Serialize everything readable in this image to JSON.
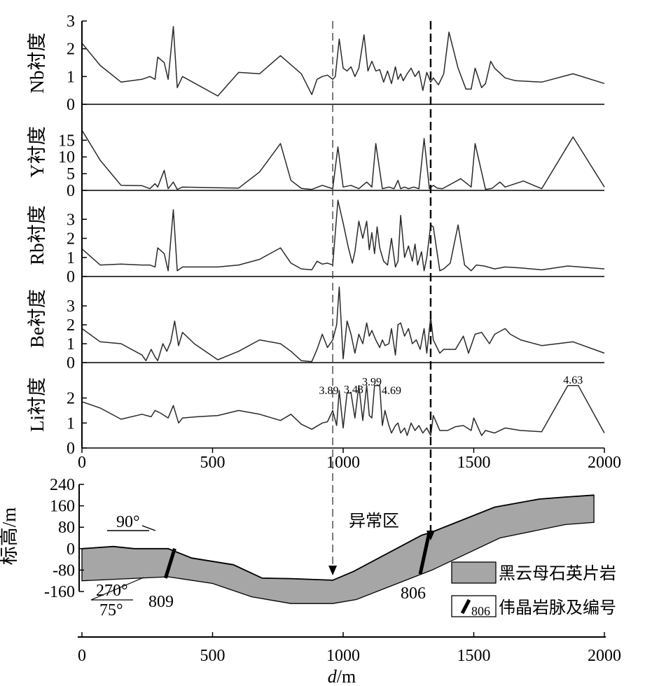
{
  "chart_data": [
    {
      "type": "line",
      "ylabel": "Nb衬度",
      "ylim": [
        0,
        3
      ],
      "yticks": [
        0,
        1,
        2,
        3
      ],
      "x": [
        0,
        70,
        150,
        230,
        260,
        280,
        290,
        315,
        330,
        350,
        365,
        385,
        520,
        600,
        680,
        760,
        840,
        880,
        900,
        920,
        940,
        960,
        970,
        985,
        1000,
        1015,
        1030,
        1045,
        1060,
        1080,
        1095,
        1110,
        1125,
        1140,
        1155,
        1170,
        1185,
        1200,
        1210,
        1220,
        1230,
        1245,
        1260,
        1275,
        1290,
        1305,
        1320,
        1335,
        1345,
        1365,
        1385,
        1405,
        1440,
        1470,
        1490,
        1505,
        1530,
        1545,
        1565,
        1580,
        1620,
        1660,
        1760,
        1880,
        2000
      ],
      "values": [
        2.2,
        1.4,
        0.8,
        0.9,
        1.0,
        0.9,
        1.7,
        1.5,
        0.9,
        2.8,
        0.6,
        1.0,
        0.3,
        1.15,
        1.1,
        1.75,
        1.1,
        0.35,
        0.9,
        1.0,
        1.05,
        0.9,
        1.0,
        2.35,
        1.3,
        1.2,
        1.35,
        1.0,
        1.3,
        2.5,
        1.2,
        1.55,
        1.2,
        1.25,
        0.8,
        1.2,
        0.75,
        1.35,
        0.9,
        1.1,
        0.85,
        1.1,
        1.3,
        1.0,
        1.2,
        0.5,
        1.15,
        0.8,
        0.95,
        0.7,
        1.1,
        2.6,
        1.3,
        0.55,
        0.55,
        1.3,
        0.6,
        0.75,
        1.55,
        1.3,
        0.95,
        0.85,
        0.8,
        1.1,
        0.75
      ]
    },
    {
      "type": "line",
      "ylabel": "Y衬度",
      "ylim": [
        0,
        18
      ],
      "yticks": [
        0,
        5,
        10,
        15
      ],
      "x": [
        0,
        70,
        150,
        230,
        260,
        280,
        290,
        315,
        330,
        350,
        365,
        385,
        520,
        600,
        680,
        760,
        800,
        840,
        880,
        920,
        960,
        980,
        1000,
        1030,
        1060,
        1090,
        1110,
        1125,
        1150,
        1175,
        1195,
        1210,
        1220,
        1235,
        1250,
        1270,
        1290,
        1310,
        1330,
        1345,
        1360,
        1380,
        1450,
        1490,
        1505,
        1545,
        1570,
        1600,
        1620,
        1690,
        1760,
        1880,
        2000
      ],
      "values": [
        18,
        9,
        1.5,
        1.4,
        0.5,
        2.0,
        1.0,
        6.0,
        0.5,
        2.5,
        0.3,
        1.0,
        0.8,
        0.7,
        5.5,
        14,
        3.0,
        0.6,
        0.3,
        1.5,
        0.5,
        13,
        1.0,
        1.5,
        0.5,
        2.5,
        1.0,
        14,
        0.5,
        1.0,
        0.5,
        3.0,
        0.5,
        1.0,
        0.5,
        1.0,
        0.5,
        15.5,
        0.5,
        1.5,
        0.7,
        0.5,
        3.5,
        1.0,
        14,
        0.3,
        0.6,
        2.5,
        1.0,
        2.8,
        0.5,
        16,
        1.0
      ]
    },
    {
      "type": "line",
      "ylabel": "Rb衬度",
      "ylim": [
        0,
        4
      ],
      "yticks": [
        0,
        1,
        2,
        3
      ],
      "x": [
        0,
        70,
        150,
        230,
        260,
        280,
        290,
        315,
        330,
        350,
        365,
        385,
        520,
        600,
        680,
        760,
        800,
        840,
        880,
        900,
        920,
        940,
        960,
        980,
        1000,
        1020,
        1035,
        1045,
        1060,
        1075,
        1090,
        1100,
        1110,
        1120,
        1130,
        1140,
        1155,
        1170,
        1185,
        1200,
        1210,
        1220,
        1235,
        1250,
        1265,
        1275,
        1285,
        1300,
        1310,
        1320,
        1335,
        1345,
        1370,
        1385,
        1410,
        1440,
        1465,
        1490,
        1510,
        1540,
        1580,
        1620,
        1680,
        1760,
        1860,
        2000
      ],
      "values": [
        1.45,
        0.6,
        0.65,
        0.6,
        0.6,
        0.5,
        1.5,
        1.2,
        0.3,
        3.5,
        0.3,
        0.5,
        0.5,
        0.6,
        0.9,
        1.5,
        0.7,
        0.4,
        0.35,
        0.8,
        0.65,
        0.7,
        0.6,
        4.0,
        2.8,
        1.5,
        0.7,
        1.3,
        2.9,
        2.0,
        2.9,
        1.4,
        2.3,
        1.2,
        2.6,
        1.5,
        0.8,
        0.6,
        2.0,
        0.5,
        0.8,
        3.2,
        1.0,
        1.6,
        0.8,
        1.7,
        0.6,
        1.3,
        0.3,
        1.0,
        2.7,
        2.6,
        0.3,
        0.4,
        0.7,
        2.7,
        0.6,
        0.3,
        0.6,
        0.55,
        0.4,
        0.5,
        0.45,
        0.35,
        0.55,
        0.4
      ]
    },
    {
      "type": "line",
      "ylabel": "Be衬度",
      "ylim": [
        0,
        4
      ],
      "yticks": [
        0,
        1,
        2,
        3
      ],
      "x": [
        0,
        70,
        150,
        230,
        245,
        265,
        280,
        290,
        310,
        325,
        340,
        355,
        370,
        385,
        430,
        520,
        600,
        680,
        760,
        800,
        840,
        880,
        900,
        920,
        940,
        960,
        975,
        985,
        1000,
        1015,
        1030,
        1045,
        1060,
        1075,
        1090,
        1100,
        1110,
        1125,
        1140,
        1150,
        1160,
        1175,
        1185,
        1200,
        1210,
        1220,
        1235,
        1250,
        1265,
        1280,
        1295,
        1310,
        1320,
        1335,
        1345,
        1370,
        1385,
        1430,
        1460,
        1480,
        1505,
        1530,
        1560,
        1580,
        1620,
        1640,
        1680,
        1760,
        1880,
        2000
      ],
      "values": [
        1.8,
        1.1,
        1.0,
        0.4,
        0.1,
        0.7,
        0.3,
        0.1,
        1.0,
        0.6,
        1.1,
        2.2,
        0.9,
        1.6,
        1.0,
        0.15,
        0.6,
        1.2,
        1.0,
        0.6,
        0.1,
        0.05,
        0.7,
        1.5,
        0.8,
        1.2,
        2.0,
        4.0,
        0.2,
        2.2,
        1.5,
        0.5,
        1.5,
        1.0,
        2.1,
        1.4,
        1.7,
        1.2,
        0.8,
        1.2,
        0.9,
        1.0,
        1.8,
        0.4,
        2.0,
        2.1,
        1.4,
        1.8,
        1.0,
        1.2,
        0.7,
        1.8,
        0.5,
        2.4,
        1.2,
        0.5,
        0.7,
        0.7,
        1.4,
        0.5,
        1.5,
        1.6,
        1.0,
        1.5,
        1.8,
        1.5,
        1.2,
        0.9,
        1.1,
        0.5
      ]
    },
    {
      "type": "line",
      "ylabel": "Li衬度",
      "ylim": [
        0,
        2.8
      ],
      "yticks": [
        0,
        1,
        2
      ],
      "x": [
        0,
        70,
        150,
        230,
        265,
        280,
        300,
        330,
        350,
        370,
        385,
        440,
        520,
        600,
        680,
        760,
        800,
        840,
        880,
        920,
        940,
        960,
        975,
        985,
        1000,
        1015,
        1030,
        1045,
        1060,
        1075,
        1090,
        1100,
        1110,
        1120,
        1130,
        1140,
        1150,
        1160,
        1175,
        1185,
        1200,
        1210,
        1220,
        1235,
        1245,
        1260,
        1275,
        1290,
        1305,
        1320,
        1335,
        1345,
        1370,
        1400,
        1430,
        1460,
        1490,
        1500,
        1530,
        1545,
        1580,
        1620,
        1680,
        1760,
        1860,
        1900,
        2000
      ],
      "values": [
        1.85,
        1.6,
        1.15,
        1.35,
        1.25,
        1.5,
        1.4,
        1.2,
        1.7,
        1.0,
        1.2,
        1.25,
        1.3,
        1.5,
        1.35,
        1.1,
        1.35,
        0.95,
        0.75,
        1.0,
        1.05,
        1.5,
        0.9,
        2.3,
        0.8,
        2.2,
        2.2,
        1.2,
        2.5,
        1.1,
        2.5,
        1.3,
        1.2,
        2.5,
        2.5,
        2.5,
        0.9,
        1.5,
        0.9,
        0.6,
        0.9,
        1.0,
        0.6,
        0.8,
        0.5,
        1.0,
        0.7,
        0.9,
        0.6,
        0.8,
        0.5,
        1.3,
        0.7,
        0.7,
        0.85,
        0.9,
        0.7,
        1.2,
        0.5,
        0.7,
        0.6,
        0.8,
        0.7,
        0.65,
        2.5,
        2.5,
        0.6
      ],
      "annotations": [
        {
          "x": 945,
          "y": 2.15,
          "label": "3.89"
        },
        {
          "x": 1040,
          "y": 2.2,
          "label": "3.43"
        },
        {
          "x": 1110,
          "y": 2.5,
          "label": "3.99"
        },
        {
          "x": 1185,
          "y": 2.15,
          "label": "4.69"
        },
        {
          "x": 1880,
          "y": 2.58,
          "label": "4.63"
        }
      ]
    }
  ],
  "xaxis": {
    "label": "d/m",
    "xlim": [
      0,
      2000
    ],
    "ticks": [
      "0",
      "500",
      "1000",
      "1500",
      "2000"
    ]
  },
  "section": {
    "ylabel": "标高/m",
    "ylim": [
      -160,
      240
    ],
    "yticks": [
      "240",
      "160",
      "80",
      "0",
      "-80",
      "-160"
    ],
    "surface": [
      [
        0,
        0
      ],
      [
        120,
        8
      ],
      [
        200,
        0
      ],
      [
        330,
        0
      ],
      [
        420,
        -35
      ],
      [
        580,
        -60
      ],
      [
        690,
        -110
      ],
      [
        800,
        -112
      ],
      [
        960,
        -118
      ],
      [
        1040,
        -85
      ],
      [
        1300,
        50
      ],
      [
        1340,
        62
      ],
      [
        1580,
        155
      ],
      [
        1750,
        185
      ],
      [
        1840,
        192
      ],
      [
        1960,
        200
      ]
    ],
    "base": [
      [
        1960,
        98
      ],
      [
        1850,
        90
      ],
      [
        1600,
        40
      ],
      [
        1340,
        -80
      ],
      [
        1300,
        -95
      ],
      [
        1050,
        -190
      ],
      [
        960,
        -205
      ],
      [
        800,
        -205
      ],
      [
        650,
        -180
      ],
      [
        500,
        -130
      ],
      [
        330,
        -105
      ],
      [
        0,
        -120
      ]
    ],
    "dikes": [
      {
        "label": "809",
        "x_top": 355,
        "x_bot": 320,
        "top": 0,
        "bottom": -110
      },
      {
        "label": "806",
        "x_top": 1330,
        "x_bot": 1295,
        "top": 62,
        "bottom": -95
      }
    ],
    "anomaly_label": "异常区",
    "orientation_top": "90°",
    "orientation_dip": "270°",
    "orientation_angle": "75°"
  },
  "guides": [
    {
      "x": 960,
      "style": "thin"
    },
    {
      "x": 1335,
      "style": "thick"
    }
  ],
  "legend": [
    {
      "label": "黑云母石英片岩",
      "swatch": "#a6a6a6"
    },
    {
      "label": "伟晶岩脉及编号",
      "swatch_label": "806"
    }
  ],
  "colors": {
    "line": "#2a2a2a",
    "rock": "#a6a6a6",
    "ink": "#000000"
  }
}
